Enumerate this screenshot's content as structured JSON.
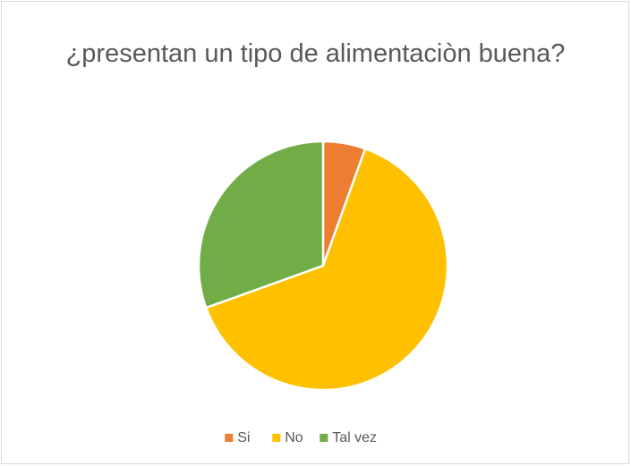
{
  "chart_data": {
    "type": "pie",
    "title": "¿presentan un tipo de alimentaciòn buena?",
    "categories": [
      "Si",
      "No",
      "Tal vez"
    ],
    "values": [
      5.5,
      64,
      30.5
    ],
    "colors": [
      "#ed7d31",
      "#ffc000",
      "#70ad47"
    ],
    "legend": "bottom"
  }
}
